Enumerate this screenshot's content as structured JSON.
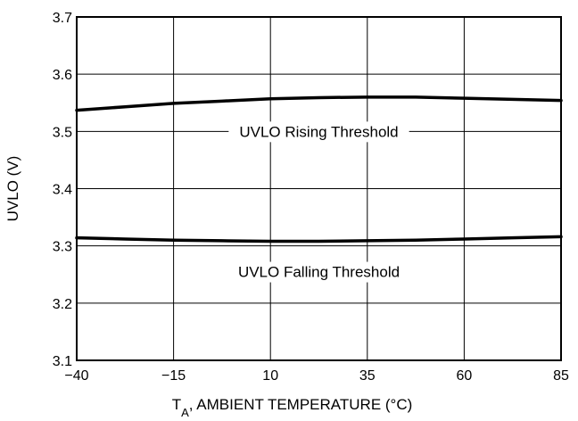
{
  "chart_data": {
    "type": "line",
    "title": "",
    "xlabel_main": "T",
    "xlabel_sub": "A",
    "xlabel_rest": ", AMBIENT TEMPERATURE (°C)",
    "ylabel": "UVLO (V)",
    "xlim": [
      -40,
      85
    ],
    "ylim": [
      3.1,
      3.7
    ],
    "x_ticks": [
      -40,
      -15,
      10,
      35,
      60,
      85
    ],
    "x_tick_labels": [
      "−40",
      "−15",
      "10",
      "35",
      "60",
      "85"
    ],
    "y_ticks": [
      3.1,
      3.2,
      3.3,
      3.4,
      3.5,
      3.6,
      3.7
    ],
    "y_tick_labels": [
      "3.1",
      "3.2",
      "3.3",
      "3.4",
      "3.5",
      "3.6",
      "3.7"
    ],
    "grid": true,
    "series": [
      {
        "name": "UVLO Rising Threshold",
        "x": [
          -40,
          -27.5,
          -15,
          -2.5,
          10,
          22.5,
          35,
          47.5,
          60,
          72.5,
          85
        ],
        "y": [
          3.537,
          3.543,
          3.549,
          3.553,
          3.557,
          3.559,
          3.56,
          3.56,
          3.558,
          3.556,
          3.554
        ]
      },
      {
        "name": "UVLO Falling Threshold",
        "x": [
          -40,
          -27.5,
          -15,
          -2.5,
          10,
          22.5,
          35,
          47.5,
          60,
          72.5,
          85
        ],
        "y": [
          3.314,
          3.312,
          3.31,
          3.309,
          3.308,
          3.308,
          3.309,
          3.31,
          3.312,
          3.314,
          3.316
        ]
      }
    ],
    "annotations": [
      {
        "text": "UVLO Rising Threshold",
        "x": 22.5,
        "y": 3.5
      },
      {
        "text": "UVLO Falling Threshold",
        "x": 22.5,
        "y": 3.255
      }
    ]
  }
}
